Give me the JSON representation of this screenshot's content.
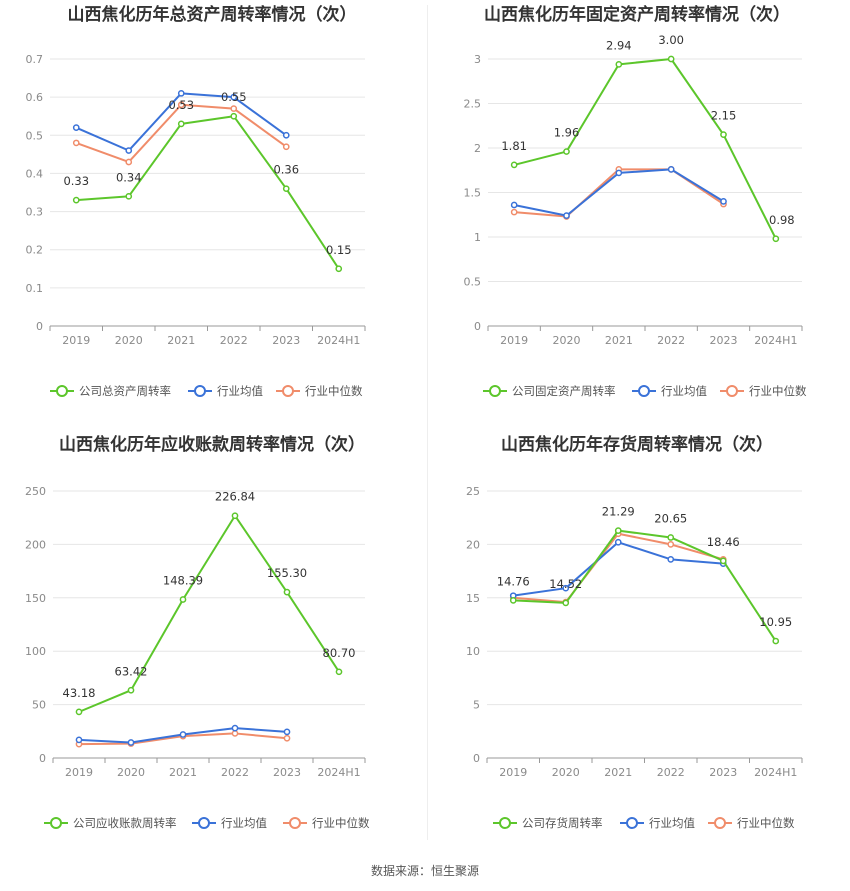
{
  "colors": {
    "company": "#5cc62b",
    "avg": "#3a72d8",
    "median": "#f08c6a",
    "grid": "#e6e6e6",
    "axis": "#999999"
  },
  "source_text": "数据来源：恒生聚源",
  "chart_data": [
    {
      "type": "line",
      "title": "山西焦化历年总资产周转率情况（次）",
      "categories": [
        "2019",
        "2020",
        "2021",
        "2022",
        "2023",
        "2024H1"
      ],
      "ylim": [
        0,
        0.7
      ],
      "yticks": [
        "0",
        "0.1",
        "0.2",
        "0.3",
        "0.4",
        "0.5",
        "0.6",
        "0.7"
      ],
      "grid": true,
      "legend": "bottom",
      "series": [
        {
          "name": "公司总资产周转率",
          "values": [
            0.33,
            0.34,
            0.53,
            0.55,
            0.36,
            0.15
          ],
          "labels": [
            "0.33",
            "0.34",
            "0.53",
            "0.55",
            "0.36",
            "0.15"
          ]
        },
        {
          "name": "行业均值",
          "values": [
            0.52,
            0.46,
            0.61,
            0.6,
            0.5,
            null
          ]
        },
        {
          "name": "行业中位数",
          "values": [
            0.48,
            0.43,
            0.58,
            0.57,
            0.47,
            null
          ]
        }
      ]
    },
    {
      "type": "line",
      "title": "山西焦化历年固定资产周转率情况（次）",
      "categories": [
        "2019",
        "2020",
        "2021",
        "2022",
        "2023",
        "2024H1"
      ],
      "ylim": [
        0,
        3
      ],
      "yticks": [
        "0",
        "0.5",
        "1",
        "1.5",
        "2",
        "2.5",
        "3"
      ],
      "grid": true,
      "legend": "bottom",
      "series": [
        {
          "name": "公司固定资产周转率",
          "values": [
            1.81,
            1.96,
            2.94,
            3.0,
            2.15,
            0.98
          ],
          "labels": [
            "1.81",
            "1.96",
            "2.94",
            "3.00",
            "2.15",
            "0.98"
          ]
        },
        {
          "name": "行业均值",
          "values": [
            1.36,
            1.24,
            1.72,
            1.76,
            1.4,
            null
          ]
        },
        {
          "name": "行业中位数",
          "values": [
            1.28,
            1.23,
            1.76,
            1.76,
            1.37,
            null
          ]
        }
      ]
    },
    {
      "type": "line",
      "title": "山西焦化历年应收账款周转率情况（次）",
      "categories": [
        "2019",
        "2020",
        "2021",
        "2022",
        "2023",
        "2024H1"
      ],
      "ylim": [
        0,
        250
      ],
      "yticks": [
        "0",
        "50",
        "100",
        "150",
        "200",
        "250"
      ],
      "grid": true,
      "legend": "bottom",
      "series": [
        {
          "name": "公司应收账款周转率",
          "values": [
            43.18,
            63.42,
            148.39,
            226.84,
            155.3,
            80.7
          ],
          "labels": [
            "43.18",
            "63.42",
            "148.39",
            "226.84",
            "155.30",
            "80.70"
          ]
        },
        {
          "name": "行业均值",
          "values": [
            17,
            14.5,
            22,
            28,
            24.5,
            null
          ]
        },
        {
          "name": "行业中位数",
          "values": [
            13,
            13.5,
            20.5,
            23,
            18.5,
            null
          ]
        }
      ]
    },
    {
      "type": "line",
      "title": "山西焦化历年存货周转率情况（次）",
      "categories": [
        "2019",
        "2020",
        "2021",
        "2022",
        "2023",
        "2024H1"
      ],
      "ylim": [
        0,
        25
      ],
      "yticks": [
        "0",
        "5",
        "10",
        "15",
        "20",
        "25"
      ],
      "grid": true,
      "legend": "bottom",
      "series": [
        {
          "name": "公司存货周转率",
          "values": [
            14.76,
            14.52,
            21.29,
            20.65,
            18.46,
            10.95
          ],
          "labels": [
            "14.76",
            "14.52",
            "21.29",
            "20.65",
            "18.46",
            "10.95"
          ]
        },
        {
          "name": "行业均值",
          "values": [
            15.2,
            15.9,
            20.2,
            18.6,
            18.2,
            null
          ]
        },
        {
          "name": "行业中位数",
          "values": [
            15.0,
            14.6,
            21.0,
            20.0,
            18.6,
            null
          ]
        }
      ]
    }
  ]
}
